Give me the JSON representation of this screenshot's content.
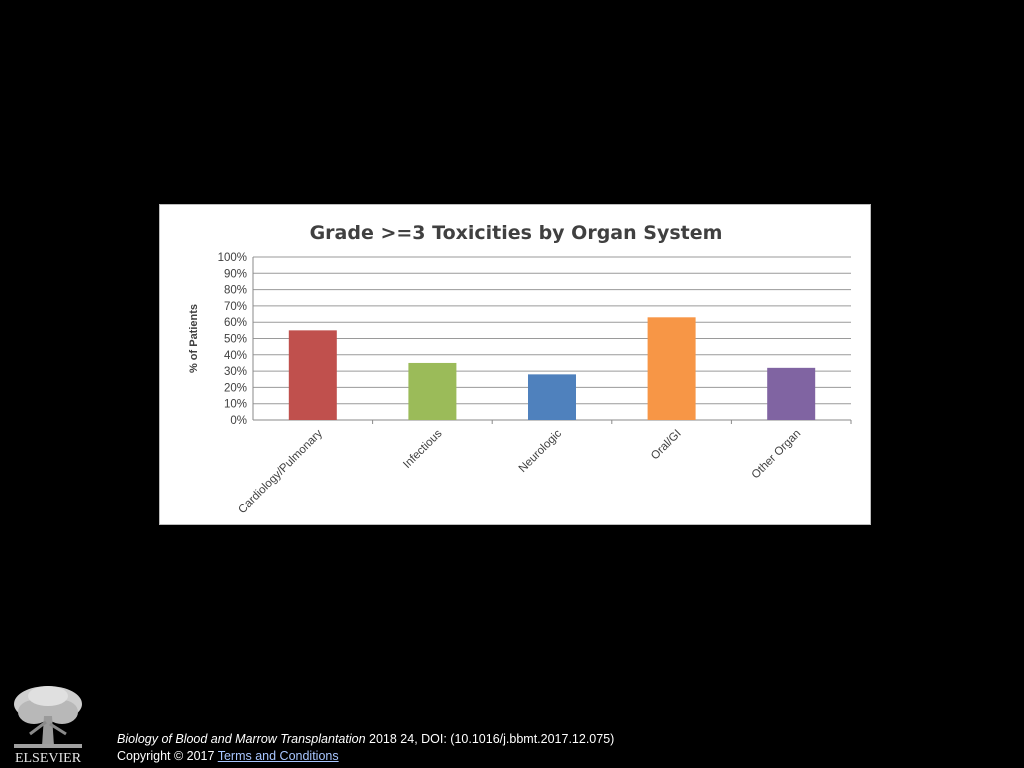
{
  "chart_data": {
    "type": "bar",
    "title": "Grade >=3 Toxicities by Organ System",
    "xlabel": "",
    "ylabel": "% of Patients",
    "categories": [
      "Cardiology/Pulmonary",
      "Infectious",
      "Neurologic",
      "Oral/GI",
      "Other Organ"
    ],
    "values": [
      55,
      35,
      28,
      63,
      32
    ],
    "colors": [
      "#c0504d",
      "#9bbb59",
      "#4f81bd",
      "#f79646",
      "#8064a2"
    ],
    "ylim": [
      0,
      100
    ],
    "yticks": [
      "0%",
      "10%",
      "20%",
      "30%",
      "40%",
      "50%",
      "60%",
      "70%",
      "80%",
      "90%",
      "100%"
    ],
    "grid": true,
    "legend": "none"
  },
  "footer": {
    "publisher_logo_text": "ELSEVIER",
    "journal": "Biology of Blood and Marrow Transplantation",
    "citation_rest": " 2018 24, DOI: (10.1016/j.bbmt.2017.12.075)",
    "copyright": "Copyright © 2017 ",
    "terms_link": " Terms and Conditions"
  }
}
